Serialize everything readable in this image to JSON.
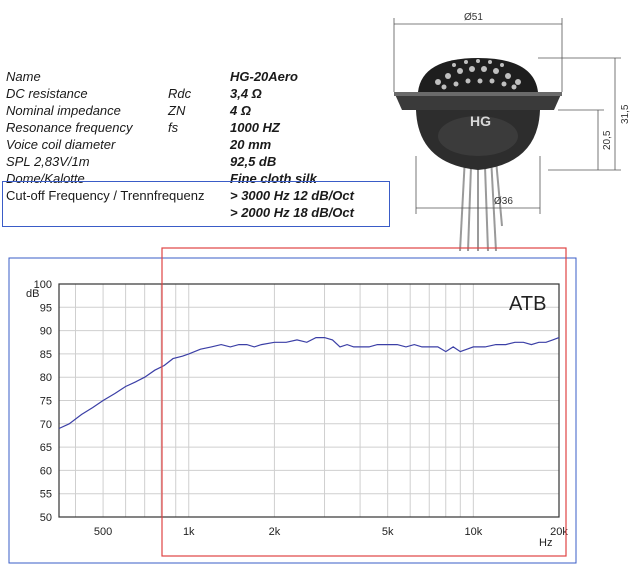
{
  "specs": {
    "rows": [
      {
        "label": "Name",
        "symbol": "",
        "value": "HG-20Aero"
      },
      {
        "label": "DC resistance",
        "symbol": "Rdc",
        "value": "3,4 Ω"
      },
      {
        "label": "Nominal impedance",
        "symbol": "ZN",
        "value": "4 Ω"
      },
      {
        "label": "Resonance frequency",
        "symbol": "fs",
        "value": "1000 HZ"
      },
      {
        "label": "Voice coil diameter",
        "symbol": "",
        "value": "20 mm"
      },
      {
        "label": "SPL 2,83V/1m",
        "symbol": "",
        "value": "92,5 dB"
      },
      {
        "label": "Dome/Kalotte",
        "symbol": "",
        "value": "Fine cloth silk"
      }
    ],
    "cutoff": {
      "label": "Cut-off Frequency / Trennfrequenz",
      "value1": "> 3000 Hz 12 dB/Oct",
      "value2": "> 2000 Hz 18 dB/Oct"
    }
  },
  "drawing": {
    "dim_width": "Ø51",
    "dim_height_total": "31,5",
    "dim_height_body": "20,5",
    "dim_base": "Ø36",
    "logo": "HG"
  },
  "chart_data": {
    "type": "line",
    "title": "",
    "annotation": "ATB",
    "xlabel": "Hz",
    "ylabel": "dB",
    "x_scale": "log",
    "xlim": [
      350,
      20000
    ],
    "ylim": [
      50,
      100
    ],
    "xticks": [
      "500",
      "1k",
      "2k",
      "5k",
      "10k",
      "20k"
    ],
    "yticks": [
      100,
      95,
      90,
      85,
      80,
      75,
      70,
      65,
      60,
      55,
      50
    ],
    "grid": true,
    "series": [
      {
        "color": "#3b3fa6",
        "x": [
          350,
          380,
          420,
          460,
          500,
          550,
          600,
          650,
          700,
          760,
          820,
          880,
          950,
          1000,
          1100,
          1200,
          1300,
          1400,
          1500,
          1600,
          1700,
          1800,
          2000,
          2200,
          2400,
          2600,
          2800,
          3000,
          3200,
          3400,
          3600,
          3800,
          4000,
          4300,
          4600,
          5000,
          5400,
          5800,
          6200,
          6600,
          7000,
          7500,
          8000,
          8500,
          9000,
          9500,
          10000,
          11000,
          12000,
          13000,
          14000,
          15000,
          16000,
          17000,
          18000,
          19000,
          20000
        ],
        "y": [
          69,
          70,
          72,
          73.5,
          75,
          76.5,
          78,
          79,
          80,
          81.5,
          82.5,
          84,
          84.5,
          85,
          86,
          86.5,
          87,
          86.5,
          87,
          87,
          86.5,
          87,
          87.5,
          87.5,
          88,
          87.5,
          88.5,
          88.5,
          88,
          86.5,
          87,
          86.5,
          86.5,
          86.5,
          87,
          87,
          87,
          86.5,
          87,
          86.5,
          86.5,
          86.5,
          85.5,
          86.5,
          85.5,
          86,
          86.5,
          86.5,
          87,
          87,
          87.5,
          87.5,
          87,
          87.5,
          87.5,
          88,
          88.5
        ]
      }
    ]
  }
}
